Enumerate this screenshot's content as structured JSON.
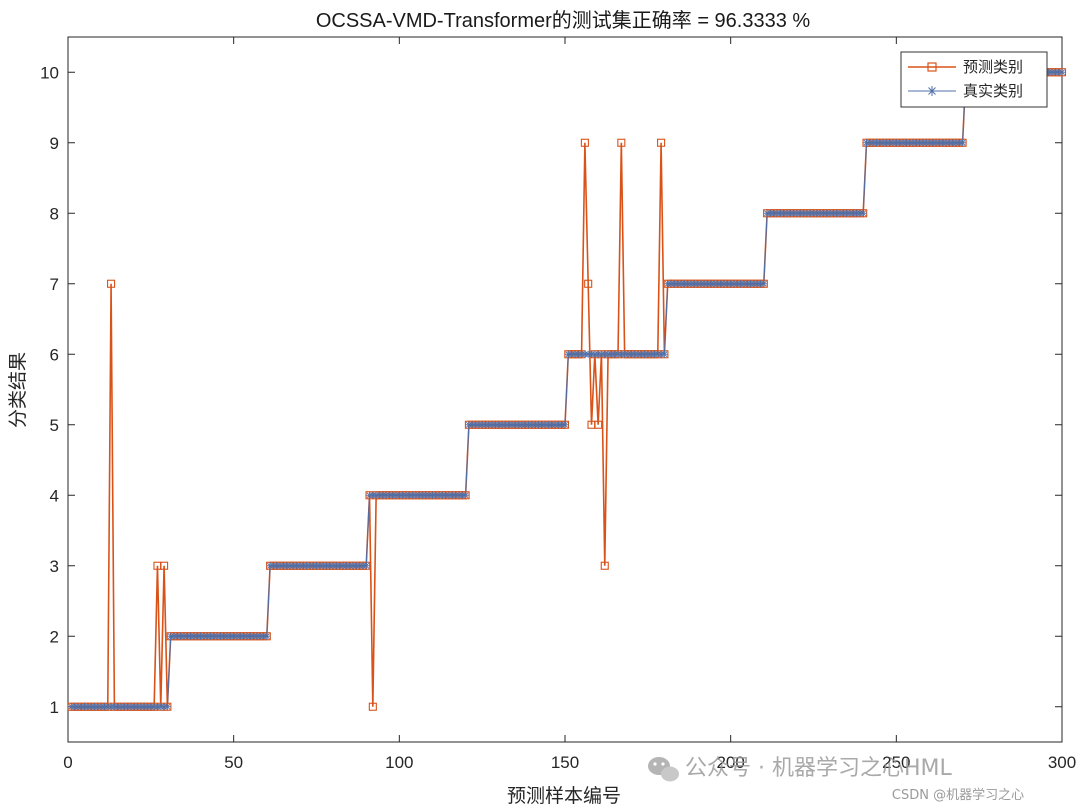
{
  "chart_data": {
    "type": "line",
    "title": "OCSSA-VMD-Transformer的测试集正确率 = 96.3333 %",
    "xlabel": "预测样本编号",
    "ylabel": "分类结果",
    "xlim": [
      0,
      300
    ],
    "ylim": [
      0.5,
      10.5
    ],
    "xticks": [
      0,
      50,
      100,
      150,
      200,
      250,
      300
    ],
    "yticks": [
      1,
      2,
      3,
      4,
      5,
      6,
      7,
      8,
      9,
      10
    ],
    "legend_position": "top-right",
    "n_samples": 300,
    "true_segments": [
      {
        "start": 1,
        "end": 30,
        "value": 1
      },
      {
        "start": 31,
        "end": 60,
        "value": 2
      },
      {
        "start": 61,
        "end": 90,
        "value": 3
      },
      {
        "start": 91,
        "end": 120,
        "value": 4
      },
      {
        "start": 121,
        "end": 150,
        "value": 5
      },
      {
        "start": 151,
        "end": 180,
        "value": 6
      },
      {
        "start": 181,
        "end": 210,
        "value": 7
      },
      {
        "start": 211,
        "end": 240,
        "value": 8
      },
      {
        "start": 241,
        "end": 270,
        "value": 9
      },
      {
        "start": 271,
        "end": 300,
        "value": 10
      }
    ],
    "prediction_errors": [
      {
        "index": 13,
        "value": 7
      },
      {
        "index": 27,
        "value": 3
      },
      {
        "index": 29,
        "value": 3
      },
      {
        "index": 92,
        "value": 1
      },
      {
        "index": 156,
        "value": 9
      },
      {
        "index": 157,
        "value": 7
      },
      {
        "index": 158,
        "value": 5
      },
      {
        "index": 160,
        "value": 5
      },
      {
        "index": 162,
        "value": 3
      },
      {
        "index": 167,
        "value": 9
      },
      {
        "index": 179,
        "value": 9
      }
    ],
    "series": [
      {
        "name": "预测类别",
        "color": "#d95319",
        "marker": "square",
        "values_ref": "true_segments + prediction_errors"
      },
      {
        "name": "真实类别",
        "color": "#4f6fa8",
        "marker": "asterisk",
        "values_ref": "true_segments"
      }
    ]
  },
  "watermark": {
    "main": "公众号 · 机器学习之心HML",
    "sub": "CSDN @机器学习之心"
  }
}
